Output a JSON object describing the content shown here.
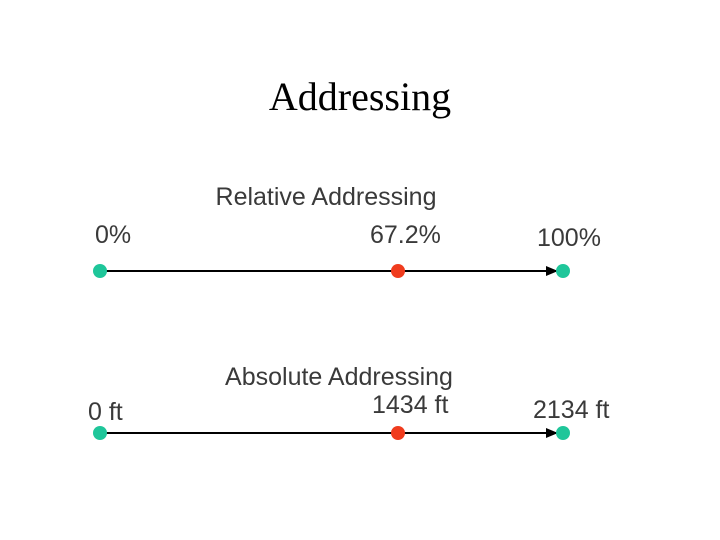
{
  "title": "Addressing",
  "diagrams": [
    {
      "heading": "Relative Addressing",
      "labels": [
        "0%",
        "67.2%",
        "100%"
      ]
    },
    {
      "heading": "Absolute Addressing",
      "labels": [
        "0 ft",
        "1434 ft",
        "2134 ft"
      ]
    }
  ]
}
